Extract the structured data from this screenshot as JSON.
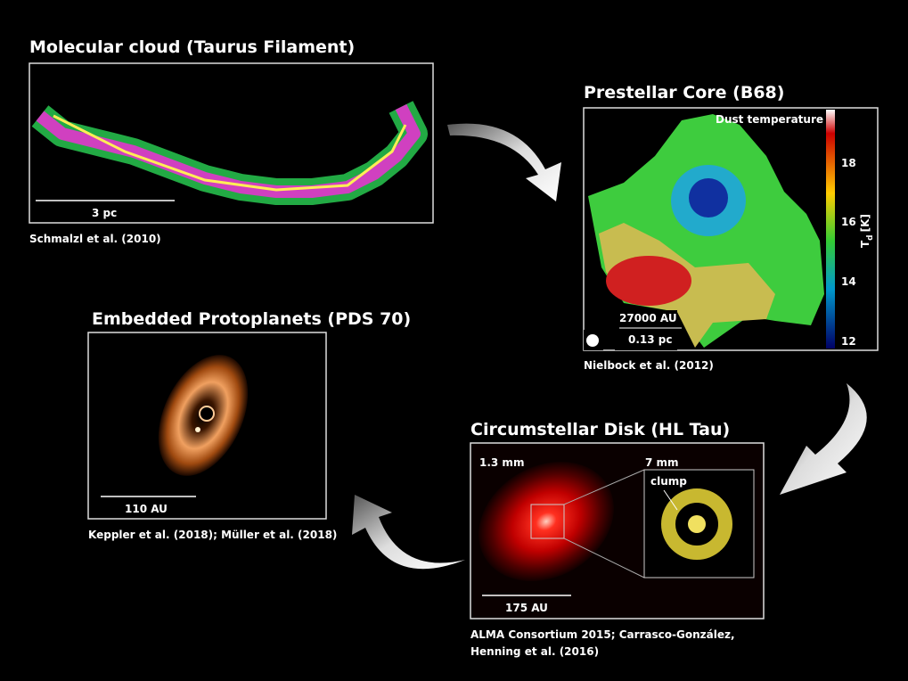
{
  "panels": [
    {
      "title": "Molecular cloud (Taurus Filament)",
      "scale": "3 pc",
      "credit": "Schmalzl et al. (2010)"
    },
    {
      "title": "Prestellar Core (B68)",
      "map_label": "Dust temperature",
      "scale_top": "27000 AU",
      "scale_bottom": "0.13 pc",
      "colorbar": {
        "symbol": "T",
        "subscript": "d",
        "unit": "[K]",
        "ticks": [
          "18",
          "16",
          "14",
          "12"
        ]
      },
      "credit": "Nielbock et al. (2012)"
    },
    {
      "title": "Embedded Protoplanets (PDS 70)",
      "scale": "110 AU",
      "credit": "Keppler et al. (2018); Müller et al. (2018)"
    },
    {
      "title": "Circumstellar Disk (HL Tau)",
      "left_label": "1.3 mm",
      "right_label": "7 mm",
      "inset_label": "clump",
      "scale": "175 AU",
      "credit": [
        "ALMA Consortium 2015; Carrasco-González,",
        "Henning et al. (2016)"
      ]
    }
  ]
}
